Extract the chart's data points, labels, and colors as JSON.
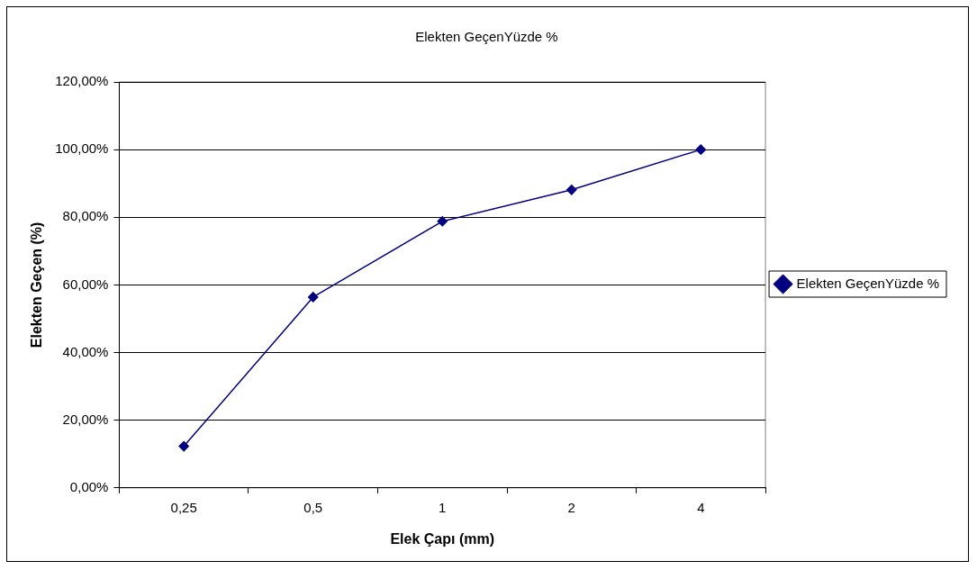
{
  "chart_data": {
    "type": "line",
    "title": "Elekten GeçenYüzde %",
    "xlabel": "Elek Çapı (mm)",
    "ylabel": "Elekten Geçen (%)",
    "categories": [
      "0,25",
      "0,5",
      "1",
      "2",
      "4"
    ],
    "series": [
      {
        "name": "Elekten GeçenYüzde %",
        "color": "#000080",
        "values": [
          12.3,
          56.4,
          78.8,
          88.1,
          100
        ]
      }
    ],
    "ylim": [
      0,
      120
    ],
    "yticks": [
      {
        "value": 0,
        "label": "0,00%"
      },
      {
        "value": 20,
        "label": "20,00%"
      },
      {
        "value": 40,
        "label": "40,00%"
      },
      {
        "value": 60,
        "label": "60,00%"
      },
      {
        "value": 80,
        "label": "80,00%"
      },
      {
        "value": 100,
        "label": "100,00%"
      },
      {
        "value": 120,
        "label": "120,00%"
      }
    ],
    "grid": "y",
    "legend": "right",
    "marker": "diamond",
    "line_style": "solid"
  }
}
